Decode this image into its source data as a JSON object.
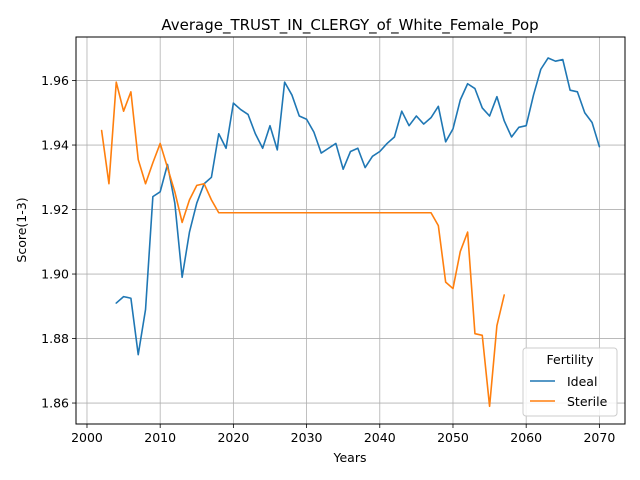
{
  "chart_data": {
    "type": "line",
    "title": "Average_TRUST_IN_CLERGY_of_White_Female_Pop",
    "xlabel": "Years",
    "ylabel": "Score(1-3)",
    "xlim": [
      1998.5,
      2073.5
    ],
    "ylim": [
      1.8535,
      1.9735
    ],
    "xticks": [
      2000,
      2010,
      2020,
      2030,
      2040,
      2050,
      2060,
      2070
    ],
    "xtick_labels": [
      "2000",
      "2010",
      "2020",
      "2030",
      "2040",
      "2050",
      "2060",
      "2070"
    ],
    "yticks": [
      1.86,
      1.88,
      1.9,
      1.92,
      1.94,
      1.96
    ],
    "ytick_labels": [
      "1.86",
      "1.88",
      "1.90",
      "1.92",
      "1.94",
      "1.96"
    ],
    "grid": true,
    "legend": {
      "title": "Fertility",
      "position": "lower-right"
    },
    "series": [
      {
        "name": "Ideal",
        "color": "#1f77b4",
        "x": [
          2004,
          2005,
          2006,
          2007,
          2008,
          2009,
          2010,
          2011,
          2012,
          2013,
          2014,
          2015,
          2016,
          2017,
          2018,
          2019,
          2020,
          2021,
          2022,
          2023,
          2024,
          2025,
          2026,
          2027,
          2028,
          2029,
          2030,
          2031,
          2032,
          2033,
          2034,
          2035,
          2036,
          2037,
          2038,
          2039,
          2040,
          2041,
          2042,
          2043,
          2044,
          2045,
          2046,
          2047,
          2048,
          2049,
          2050,
          2051,
          2052,
          2053,
          2054,
          2055,
          2056,
          2057,
          2058,
          2059,
          2060,
          2061,
          2062,
          2063,
          2064,
          2065,
          2066,
          2067,
          2068,
          2069,
          2070
        ],
        "y": [
          1.891,
          1.893,
          1.8925,
          1.875,
          1.889,
          1.924,
          1.9255,
          1.934,
          1.922,
          1.899,
          1.913,
          1.922,
          1.928,
          1.93,
          1.9435,
          1.939,
          1.953,
          1.951,
          1.9495,
          1.9435,
          1.939,
          1.946,
          1.9385,
          1.9595,
          1.9555,
          1.949,
          1.948,
          1.944,
          1.9375,
          1.939,
          1.9405,
          1.9325,
          1.938,
          1.939,
          1.933,
          1.9365,
          1.938,
          1.9405,
          1.9425,
          1.9505,
          1.946,
          1.949,
          1.9465,
          1.9485,
          1.952,
          1.941,
          1.945,
          1.954,
          1.959,
          1.9575,
          1.9515,
          1.949,
          1.955,
          1.9475,
          1.9425,
          1.9455,
          1.946,
          1.9555,
          1.9635,
          1.967,
          1.966,
          1.9665,
          1.957,
          1.9565,
          1.95,
          1.947,
          1.9395
        ]
      },
      {
        "name": "Sterile",
        "color": "#ff7f0e",
        "x": [
          2002,
          2003,
          2004,
          2005,
          2006,
          2007,
          2008,
          2009,
          2010,
          2011,
          2012,
          2013,
          2014,
          2015,
          2016,
          2017,
          2018,
          2019,
          2020,
          2021,
          2022,
          2023,
          2024,
          2025,
          2026,
          2027,
          2028,
          2029,
          2030,
          2031,
          2032,
          2033,
          2034,
          2035,
          2036,
          2037,
          2038,
          2039,
          2040,
          2041,
          2042,
          2043,
          2044,
          2045,
          2046,
          2047,
          2048,
          2049,
          2050,
          2051,
          2052,
          2053,
          2054,
          2055,
          2056,
          2057
        ],
        "y": [
          1.9445,
          1.928,
          1.9595,
          1.9505,
          1.9565,
          1.9355,
          1.928,
          1.9345,
          1.9405,
          1.933,
          1.9255,
          1.916,
          1.923,
          1.9275,
          1.928,
          1.923,
          1.919,
          1.919,
          1.919,
          1.919,
          1.919,
          1.919,
          1.919,
          1.919,
          1.919,
          1.919,
          1.919,
          1.919,
          1.919,
          1.919,
          1.919,
          1.919,
          1.919,
          1.919,
          1.919,
          1.919,
          1.919,
          1.919,
          1.919,
          1.919,
          1.919,
          1.919,
          1.919,
          1.919,
          1.919,
          1.919,
          1.915,
          1.8975,
          1.8955,
          1.907,
          1.913,
          1.8815,
          1.881,
          1.859,
          1.884,
          1.8935
        ]
      }
    ]
  }
}
